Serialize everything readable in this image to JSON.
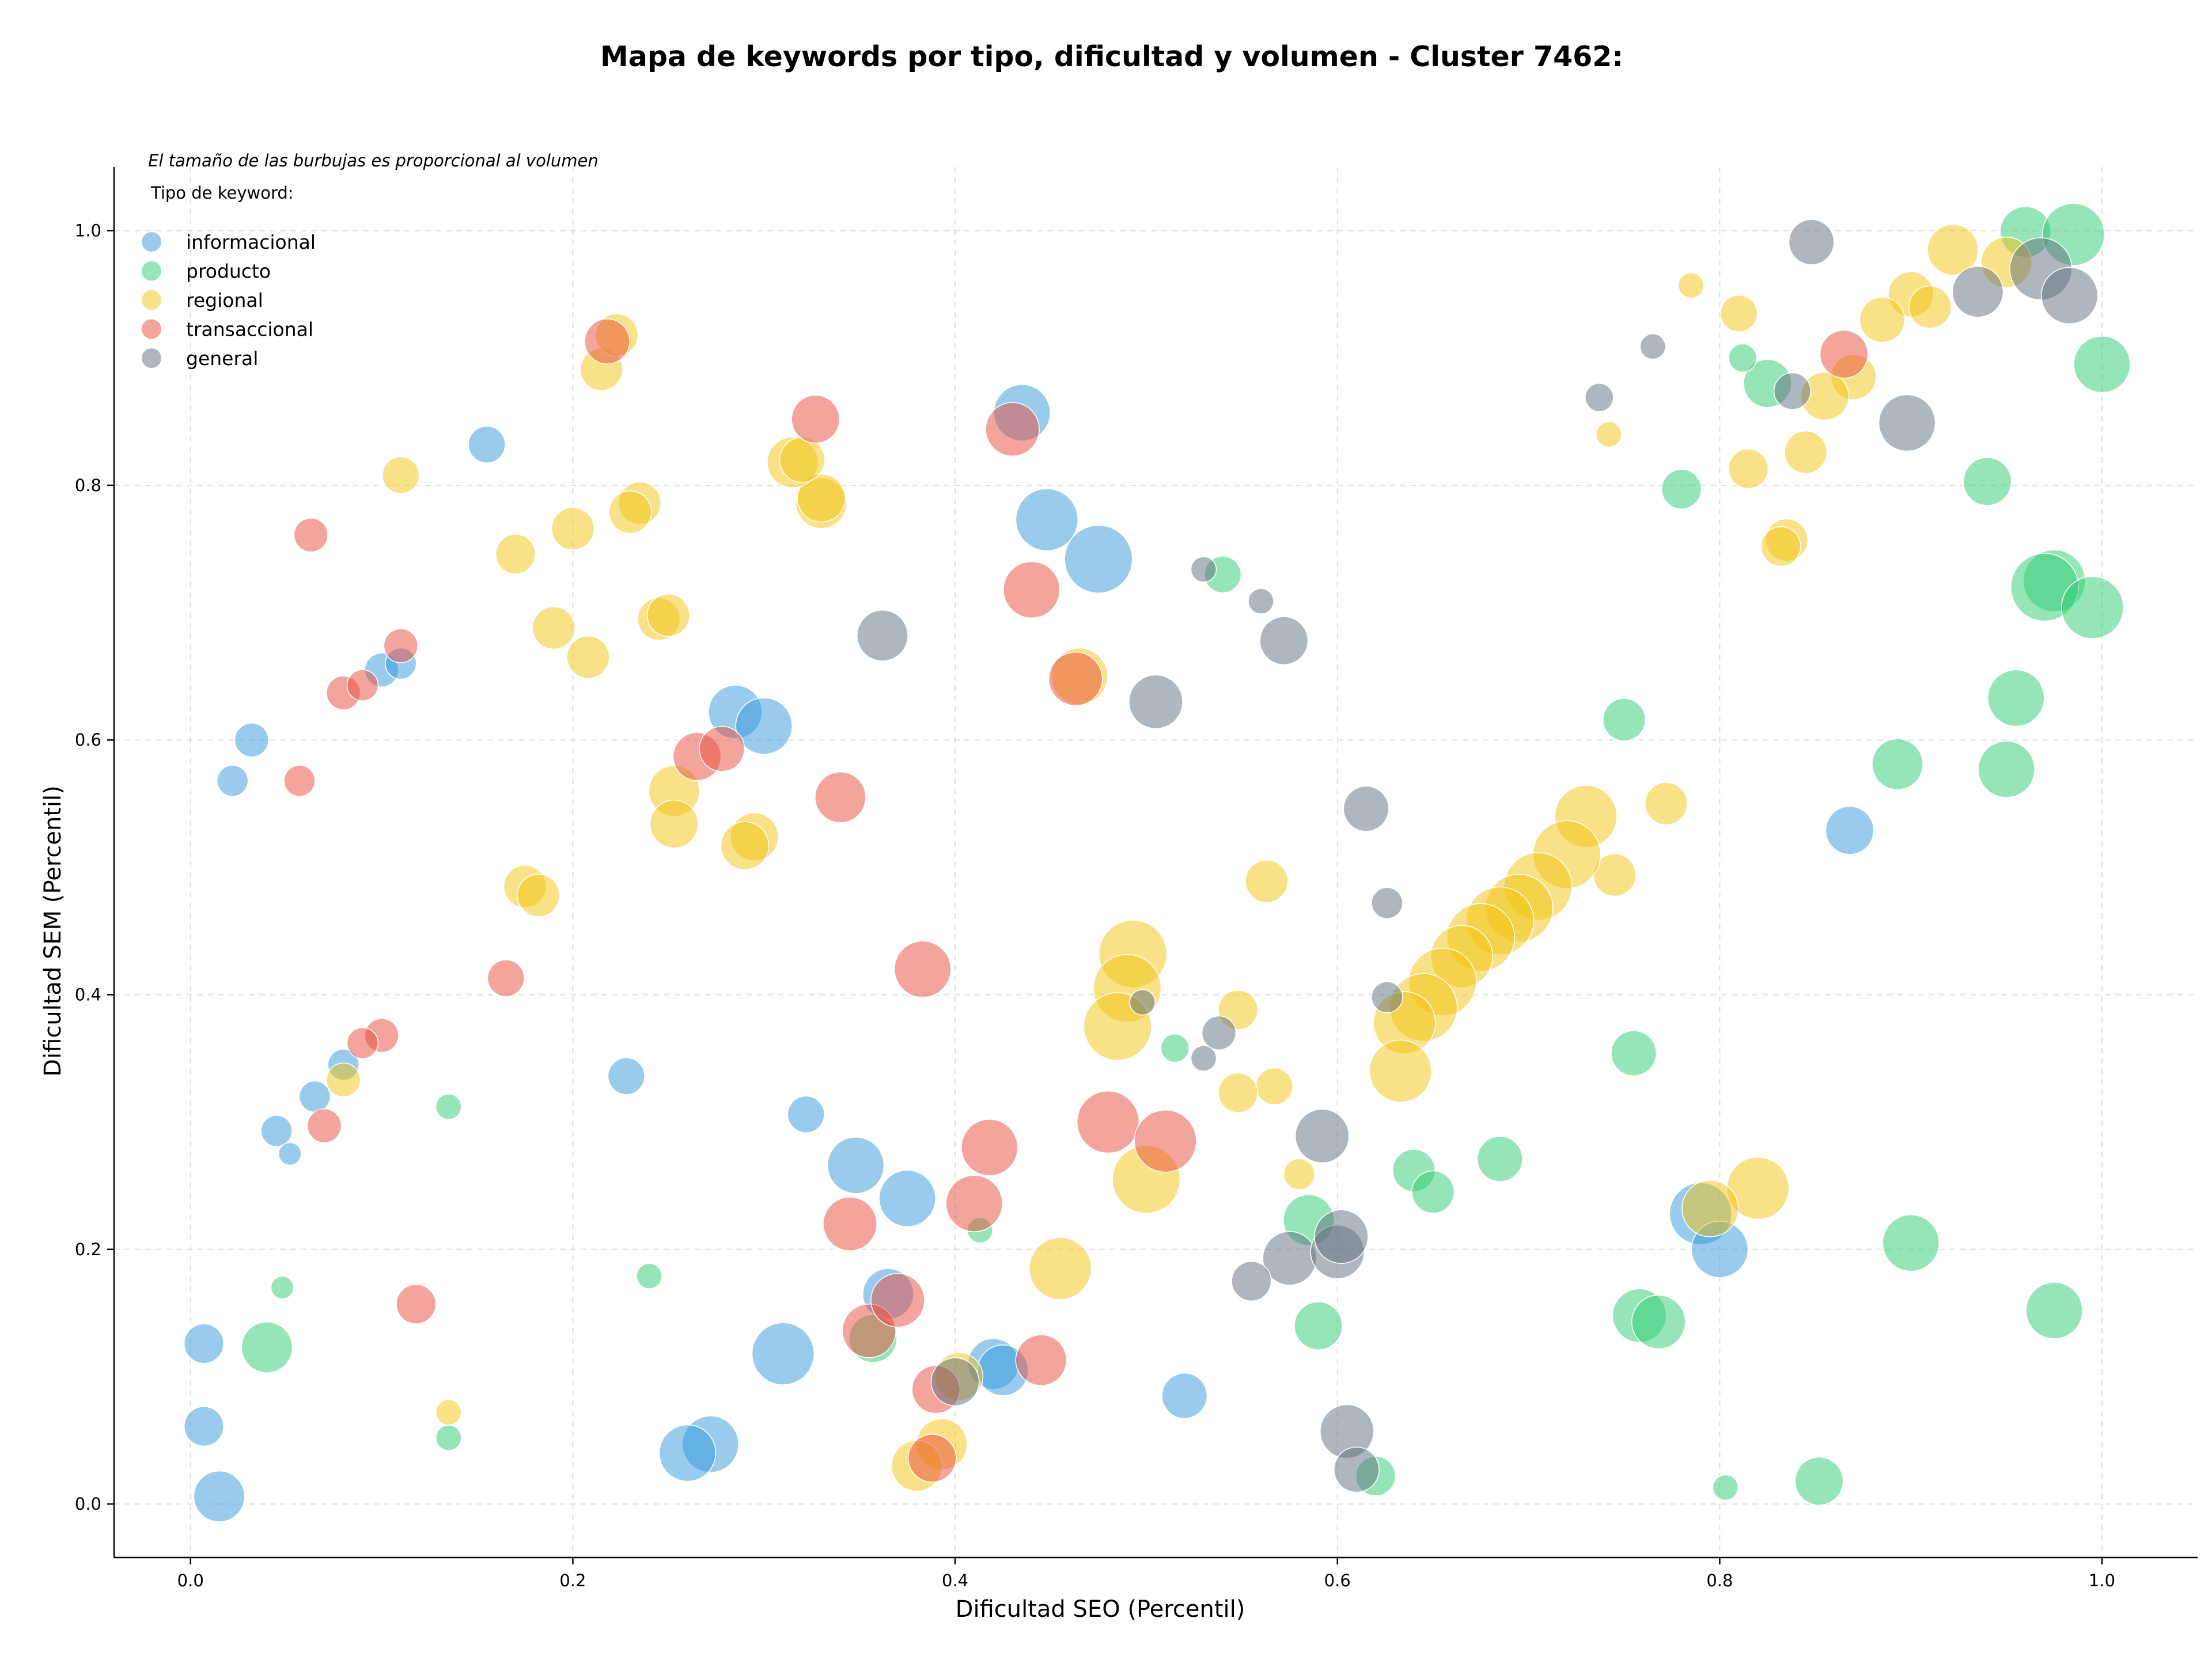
{
  "chart_data": {
    "type": "scatter",
    "title": "Mapa de keywords por tipo, dificultad y volumen - Cluster 7462:",
    "xlabel": "Dificultad SEO (Percentil)",
    "ylabel": "Dificultad SEM (Percentil)",
    "xlim": [
      -0.04,
      1.05
    ],
    "ylim": [
      -0.042,
      1.05
    ],
    "xticks": [
      0.0,
      0.2,
      0.4,
      0.6,
      0.8,
      1.0
    ],
    "yticks": [
      0.0,
      0.2,
      0.4,
      0.6,
      0.8,
      1.0
    ],
    "x_tick_labels": [
      "0.0",
      "0.2",
      "0.4",
      "0.6",
      "0.8",
      "1.0"
    ],
    "y_tick_labels": [
      "0.0",
      "0.2",
      "0.4",
      "0.6",
      "0.8",
      "1.0"
    ],
    "grid": true,
    "note": "El tamaño de las burbujas es proporcional al volumen",
    "legend": {
      "title": "Tipo de keyword:",
      "placement": "top-left"
    },
    "series": [
      {
        "name": "informacional",
        "color": "#3498db",
        "points": [
          [
            0.435,
            0.857,
            20
          ],
          [
            0.448,
            0.773,
            22
          ],
          [
            0.475,
            0.742,
            24
          ],
          [
            0.285,
            0.622,
            19
          ],
          [
            0.3,
            0.611,
            20
          ],
          [
            0.155,
            0.832,
            13
          ],
          [
            0.032,
            0.6,
            12
          ],
          [
            0.022,
            0.568,
            11
          ],
          [
            0.1,
            0.655,
            12
          ],
          [
            0.11,
            0.66,
            11
          ],
          [
            0.08,
            0.345,
            11
          ],
          [
            0.065,
            0.32,
            11
          ],
          [
            0.045,
            0.293,
            11
          ],
          [
            0.052,
            0.275,
            8
          ],
          [
            0.228,
            0.336,
            13
          ],
          [
            0.322,
            0.306,
            13
          ],
          [
            0.348,
            0.266,
            20
          ],
          [
            0.375,
            0.24,
            20
          ],
          [
            0.365,
            0.165,
            18
          ],
          [
            0.31,
            0.118,
            22
          ],
          [
            0.272,
            0.047,
            20
          ],
          [
            0.26,
            0.04,
            20
          ],
          [
            0.42,
            0.11,
            18
          ],
          [
            0.425,
            0.105,
            18
          ],
          [
            0.52,
            0.085,
            16
          ],
          [
            0.007,
            0.126,
            14
          ],
          [
            0.007,
            0.061,
            14
          ],
          [
            0.015,
            0.006,
            18
          ],
          [
            0.868,
            0.529,
            17
          ],
          [
            0.79,
            0.228,
            22
          ],
          [
            0.8,
            0.2,
            20
          ]
        ]
      },
      {
        "name": "producto",
        "color": "#2ecc71",
        "points": [
          [
            0.96,
            0.999,
            18
          ],
          [
            0.985,
            0.997,
            22
          ],
          [
            1.0,
            0.895,
            20
          ],
          [
            0.825,
            0.88,
            17
          ],
          [
            0.812,
            0.9,
            10
          ],
          [
            0.78,
            0.797,
            14
          ],
          [
            0.94,
            0.803,
            17
          ],
          [
            0.975,
            0.725,
            22
          ],
          [
            0.97,
            0.72,
            24
          ],
          [
            0.995,
            0.704,
            22
          ],
          [
            0.955,
            0.633,
            20
          ],
          [
            0.95,
            0.577,
            20
          ],
          [
            0.893,
            0.581,
            18
          ],
          [
            0.75,
            0.616,
            15
          ],
          [
            0.755,
            0.354,
            16
          ],
          [
            0.685,
            0.271,
            16
          ],
          [
            0.64,
            0.262,
            15
          ],
          [
            0.65,
            0.245,
            15
          ],
          [
            0.585,
            0.223,
            18
          ],
          [
            0.59,
            0.14,
            17
          ],
          [
            0.9,
            0.205,
            20
          ],
          [
            0.975,
            0.152,
            20
          ],
          [
            0.758,
            0.148,
            19
          ],
          [
            0.768,
            0.143,
            19
          ],
          [
            0.62,
            0.022,
            14
          ],
          [
            0.852,
            0.018,
            17
          ],
          [
            0.803,
            0.013,
            9
          ],
          [
            0.54,
            0.73,
            13
          ],
          [
            0.515,
            0.358,
            10
          ],
          [
            0.413,
            0.215,
            9
          ],
          [
            0.357,
            0.13,
            17
          ],
          [
            0.24,
            0.179,
            9
          ],
          [
            0.135,
            0.312,
            9
          ],
          [
            0.048,
            0.17,
            8
          ],
          [
            0.04,
            0.123,
            18
          ],
          [
            0.135,
            0.052,
            9
          ]
        ]
      },
      {
        "name": "regional",
        "color": "#f1c40f",
        "points": [
          [
            0.922,
            0.985,
            18
          ],
          [
            0.95,
            0.975,
            18
          ],
          [
            0.9,
            0.95,
            16
          ],
          [
            0.885,
            0.93,
            16
          ],
          [
            0.91,
            0.94,
            15
          ],
          [
            0.87,
            0.885,
            16
          ],
          [
            0.855,
            0.87,
            17
          ],
          [
            0.845,
            0.826,
            15
          ],
          [
            0.815,
            0.813,
            14
          ],
          [
            0.81,
            0.935,
            13
          ],
          [
            0.785,
            0.957,
            9
          ],
          [
            0.742,
            0.84,
            9
          ],
          [
            0.835,
            0.757,
            15
          ],
          [
            0.832,
            0.752,
            14
          ],
          [
            0.772,
            0.55,
            15
          ],
          [
            0.745,
            0.494,
            15
          ],
          [
            0.73,
            0.54,
            22
          ],
          [
            0.72,
            0.51,
            24
          ],
          [
            0.705,
            0.485,
            24
          ],
          [
            0.695,
            0.468,
            24
          ],
          [
            0.685,
            0.458,
            24
          ],
          [
            0.675,
            0.445,
            24
          ],
          [
            0.665,
            0.43,
            22
          ],
          [
            0.655,
            0.41,
            24
          ],
          [
            0.645,
            0.39,
            24
          ],
          [
            0.635,
            0.378,
            22
          ],
          [
            0.633,
            0.34,
            22
          ],
          [
            0.563,
            0.489,
            15
          ],
          [
            0.548,
            0.388,
            14
          ],
          [
            0.567,
            0.328,
            13
          ],
          [
            0.548,
            0.323,
            14
          ],
          [
            0.58,
            0.259,
            11
          ],
          [
            0.82,
            0.248,
            22
          ],
          [
            0.795,
            0.232,
            20
          ],
          [
            0.493,
            0.432,
            24
          ],
          [
            0.49,
            0.405,
            24
          ],
          [
            0.485,
            0.375,
            24
          ],
          [
            0.5,
            0.255,
            24
          ],
          [
            0.455,
            0.185,
            22
          ],
          [
            0.465,
            0.65,
            20
          ],
          [
            0.393,
            0.047,
            18
          ],
          [
            0.402,
            0.1,
            17
          ],
          [
            0.38,
            0.03,
            18
          ],
          [
            0.215,
            0.891,
            15
          ],
          [
            0.223,
            0.918,
            15
          ],
          [
            0.235,
            0.786,
            15
          ],
          [
            0.23,
            0.779,
            15
          ],
          [
            0.2,
            0.766,
            15
          ],
          [
            0.17,
            0.746,
            14
          ],
          [
            0.11,
            0.808,
            13
          ],
          [
            0.19,
            0.688,
            15
          ],
          [
            0.208,
            0.665,
            15
          ],
          [
            0.245,
            0.695,
            15
          ],
          [
            0.25,
            0.698,
            15
          ],
          [
            0.33,
            0.786,
            18
          ],
          [
            0.33,
            0.79,
            17
          ],
          [
            0.315,
            0.818,
            18
          ],
          [
            0.32,
            0.82,
            16
          ],
          [
            0.253,
            0.56,
            18
          ],
          [
            0.253,
            0.534,
            17
          ],
          [
            0.295,
            0.524,
            17
          ],
          [
            0.29,
            0.517,
            17
          ],
          [
            0.175,
            0.485,
            15
          ],
          [
            0.182,
            0.478,
            15
          ],
          [
            0.08,
            0.333,
            12
          ],
          [
            0.135,
            0.072,
            9
          ]
        ]
      },
      {
        "name": "transaccional",
        "color": "#e74c3c",
        "points": [
          [
            0.218,
            0.913,
            16
          ],
          [
            0.327,
            0.852,
            17
          ],
          [
            0.43,
            0.844,
            19
          ],
          [
            0.44,
            0.718,
            20
          ],
          [
            0.463,
            0.648,
            19
          ],
          [
            0.063,
            0.761,
            12
          ],
          [
            0.11,
            0.674,
            12
          ],
          [
            0.08,
            0.637,
            12
          ],
          [
            0.09,
            0.643,
            11
          ],
          [
            0.057,
            0.568,
            11
          ],
          [
            0.265,
            0.587,
            17
          ],
          [
            0.278,
            0.593,
            16
          ],
          [
            0.34,
            0.555,
            18
          ],
          [
            0.165,
            0.413,
            13
          ],
          [
            0.1,
            0.368,
            12
          ],
          [
            0.09,
            0.362,
            11
          ],
          [
            0.07,
            0.297,
            12
          ],
          [
            0.118,
            0.157,
            14
          ],
          [
            0.383,
            0.42,
            20
          ],
          [
            0.418,
            0.28,
            20
          ],
          [
            0.48,
            0.3,
            22
          ],
          [
            0.51,
            0.285,
            22
          ],
          [
            0.41,
            0.236,
            20
          ],
          [
            0.345,
            0.22,
            19
          ],
          [
            0.355,
            0.136,
            19
          ],
          [
            0.37,
            0.16,
            19
          ],
          [
            0.445,
            0.113,
            18
          ],
          [
            0.39,
            0.09,
            17
          ],
          [
            0.388,
            0.036,
            17
          ],
          [
            0.865,
            0.903,
            17
          ]
        ]
      },
      {
        "name": "general",
        "color": "#5d6d7e",
        "points": [
          [
            0.848,
            0.991,
            16
          ],
          [
            0.968,
            0.97,
            22
          ],
          [
            0.983,
            0.949,
            20
          ],
          [
            0.935,
            0.952,
            18
          ],
          [
            0.765,
            0.909,
            9
          ],
          [
            0.838,
            0.874,
            13
          ],
          [
            0.737,
            0.869,
            10
          ],
          [
            0.898,
            0.849,
            20
          ],
          [
            0.362,
            0.682,
            18
          ],
          [
            0.505,
            0.63,
            19
          ],
          [
            0.572,
            0.678,
            17
          ],
          [
            0.53,
            0.734,
            9
          ],
          [
            0.56,
            0.709,
            9
          ],
          [
            0.615,
            0.546,
            16
          ],
          [
            0.626,
            0.472,
            11
          ],
          [
            0.626,
            0.398,
            11
          ],
          [
            0.498,
            0.394,
            9
          ],
          [
            0.538,
            0.37,
            12
          ],
          [
            0.53,
            0.35,
            9
          ],
          [
            0.592,
            0.289,
            19
          ],
          [
            0.575,
            0.193,
            19
          ],
          [
            0.6,
            0.198,
            19
          ],
          [
            0.602,
            0.21,
            19
          ],
          [
            0.555,
            0.175,
            14
          ],
          [
            0.605,
            0.057,
            19
          ],
          [
            0.61,
            0.027,
            16
          ],
          [
            0.4,
            0.096,
            17
          ]
        ]
      }
    ]
  }
}
